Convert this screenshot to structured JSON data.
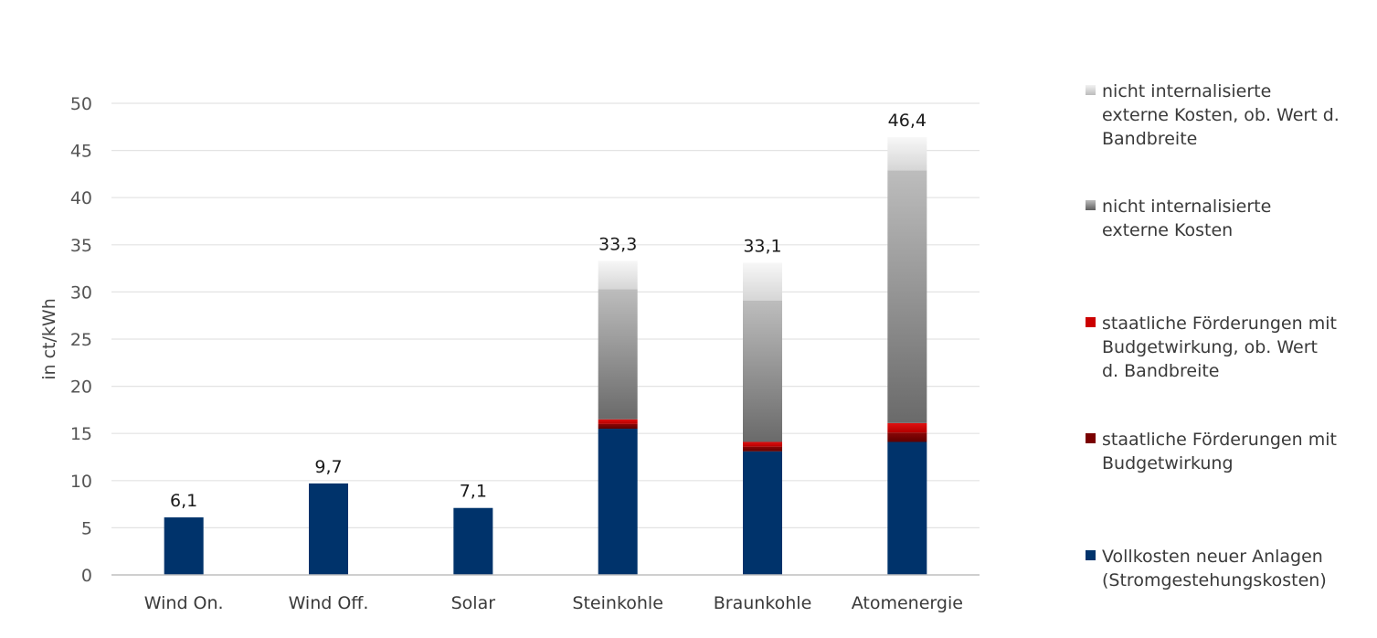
{
  "chart_data": {
    "type": "bar",
    "stacked": true,
    "title": "",
    "xlabel": "",
    "ylabel": "in ct/kWh",
    "ylim": [
      0,
      50
    ],
    "yticks": [
      0,
      5,
      10,
      15,
      20,
      25,
      30,
      35,
      40,
      45,
      50
    ],
    "grid": true,
    "legend_position": "right",
    "categories": [
      "Wind On.",
      "Wind Off.",
      "Solar",
      "Steinkohle",
      "Braunkohle",
      "Atomenergie"
    ],
    "totals": [
      6.1,
      9.7,
      7.1,
      33.3,
      33.1,
      46.4
    ],
    "total_labels": [
      "6,1",
      "9,7",
      "7,1",
      "33,3",
      "33,1",
      "46,4"
    ],
    "series": [
      {
        "name": "Vollkosten neuer Anlagen (Stromgestehungskosten)",
        "values": [
          6.1,
          9.7,
          7.1,
          15.5,
          13.1,
          14.1
        ],
        "color": "#00336b"
      },
      {
        "name": "staatliche Förderungen mit Budgetwirkung",
        "values": [
          0,
          0,
          0,
          0.5,
          0.5,
          1.0
        ],
        "color": "#7a0000"
      },
      {
        "name": "staatliche Förderungen mit Budgetwirkung, ob. Wert d. Bandbreite",
        "values": [
          0,
          0,
          0,
          0.5,
          0.5,
          1.0
        ],
        "color": "#cc0000"
      },
      {
        "name": "nicht internalisierte externe Kosten",
        "values": [
          0,
          0,
          0,
          13.8,
          15.0,
          26.8
        ],
        "color": "#8a8a8a"
      },
      {
        "name": "nicht internalisierte externe Kosten, ob. Wert d. Bandbreite",
        "values": [
          0,
          0,
          0,
          3.0,
          4.0,
          3.5
        ],
        "color": "#e8e8e8"
      }
    ]
  },
  "legend": {
    "items": [
      {
        "lines": [
          "nicht internalisierte",
          "externe Kosten, ob. Wert d.",
          "Bandbreite"
        ],
        "swatch": "grad-light"
      },
      {
        "lines": [
          "nicht internalisierte",
          "externe Kosten"
        ],
        "swatch": "grad-dark"
      },
      {
        "lines": [
          "staatliche Förderungen mit",
          "Budgetwirkung, ob. Wert",
          "d. Bandbreite"
        ],
        "swatch": "#cc0000"
      },
      {
        "lines": [
          "staatliche Förderungen mit",
          "Budgetwirkung"
        ],
        "swatch": "#7a0000"
      },
      {
        "lines": [
          "Vollkosten neuer Anlagen",
          "(Stromgestehungskosten)"
        ],
        "swatch": "#00336b"
      }
    ]
  }
}
